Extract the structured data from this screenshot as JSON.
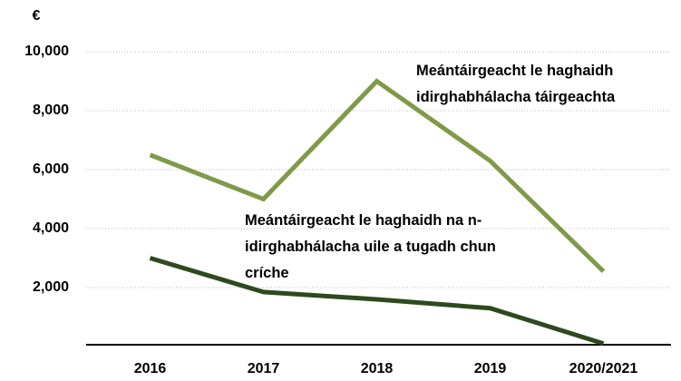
{
  "chart_data": {
    "type": "line",
    "y_label": "€",
    "categories": [
      "2016",
      "2017",
      "2018",
      "2019",
      "2020/2021"
    ],
    "series": [
      {
        "name": "Meántáirgeacht le haghaidh idirghabhálacha táirgeachta",
        "color": "#7f9a48",
        "values": [
          6500,
          5000,
          9000,
          6300,
          2550
        ]
      },
      {
        "name": "Meántáirgeacht le haghaidh na n-idirghabhálacha uile a tugadh chun críche",
        "color": "#2d4a1e",
        "values": [
          3000,
          1850,
          1600,
          1300,
          100
        ]
      }
    ],
    "ylim": [
      0,
      11000
    ],
    "yticks": [
      {
        "value": 2000,
        "label": "2,000"
      },
      {
        "value": 4000,
        "label": "4,000"
      },
      {
        "value": 6000,
        "label": "6,000"
      },
      {
        "value": 8000,
        "label": "8,000"
      },
      {
        "value": 10000,
        "label": "10,000"
      }
    ],
    "grid": true
  }
}
